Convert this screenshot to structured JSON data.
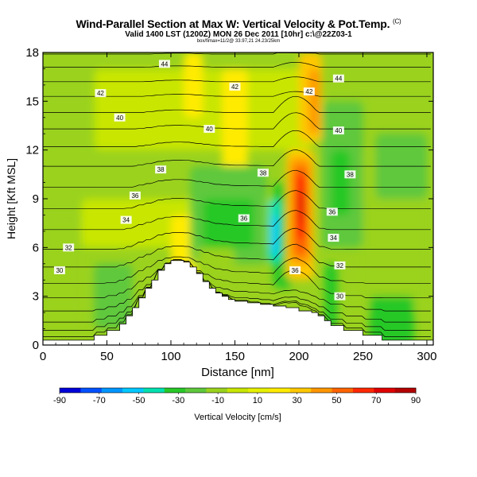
{
  "titles": {
    "main": "Wind-Parallel Section at Max W: Vertical Velocity & Pot.Temp.",
    "main_suffix": "(C)",
    "valid": "Valid 1400 LST (1200Z) MON 26 Dec 2011 [10hr] c:\\@22Z03-1",
    "small": "box/fimax=11/2@ 33.97,21 24.23/25km"
  },
  "chart_data": {
    "type": "heatmap",
    "title": "Wind-Parallel Section at Max W: Vertical Velocity & Pot.Temp.",
    "xlabel": "Distance [nm]",
    "ylabel": "Height [Kft MSL]",
    "xlim": [
      0,
      305
    ],
    "ylim": [
      0,
      18
    ],
    "x_ticks": [
      0,
      50,
      100,
      150,
      200,
      250,
      300
    ],
    "y_ticks": [
      0,
      3,
      6,
      9,
      12,
      15,
      18
    ],
    "colorbar": {
      "label": "Vertical Velocity [cm/s]",
      "tick_labels": [
        "-90",
        "-70",
        "-50",
        "-30",
        "-10",
        "10",
        "30",
        "50",
        "70",
        "90"
      ],
      "colors": [
        "#0000d8",
        "#0050ff",
        "#0096ff",
        "#00c8ff",
        "#00e0b0",
        "#28c828",
        "#5fc83c",
        "#9ad21e",
        "#c8e600",
        "#e6f000",
        "#ffeb00",
        "#ffc800",
        "#ff9600",
        "#ff6400",
        "#ff2800",
        "#e00000",
        "#b40000"
      ]
    },
    "terrain_heights_kft": [
      0.3,
      0.3,
      0.3,
      0.3,
      0.6,
      0.9,
      1.3,
      1.8,
      2.3,
      2.9,
      3.5,
      4.0,
      4.6,
      5.0,
      5.2,
      5.1,
      4.8,
      4.4,
      3.9,
      3.5,
      3.2,
      3.0,
      2.8,
      2.7,
      2.6,
      2.5,
      2.4,
      2.3,
      2.1,
      2.0,
      1.8,
      1.5,
      1.2,
      0.9,
      0.6,
      0.3,
      0.3
    ],
    "terrain_x_nm": [
      0,
      10,
      20,
      30,
      40,
      50,
      60,
      65,
      70,
      75,
      80,
      85,
      90,
      95,
      100,
      110,
      115,
      120,
      125,
      130,
      135,
      140,
      145,
      150,
      160,
      170,
      180,
      190,
      200,
      210,
      215,
      220,
      225,
      235,
      250,
      265,
      305
    ],
    "theta_contour_labels": [
      {
        "text": "30",
        "x": 13,
        "y": 4.6
      },
      {
        "text": "32",
        "x": 20,
        "y": 6.0
      },
      {
        "text": "34",
        "x": 65,
        "y": 7.7
      },
      {
        "text": "36",
        "x": 72,
        "y": 9.2
      },
      {
        "text": "38",
        "x": 92,
        "y": 10.8
      },
      {
        "text": "40",
        "x": 60,
        "y": 14.0
      },
      {
        "text": "42",
        "x": 45,
        "y": 15.5
      },
      {
        "text": "44",
        "x": 95,
        "y": 17.3
      },
      {
        "text": "40",
        "x": 130,
        "y": 13.3
      },
      {
        "text": "42",
        "x": 150,
        "y": 15.9
      },
      {
        "text": "38",
        "x": 172,
        "y": 10.6
      },
      {
        "text": "36",
        "x": 157,
        "y": 7.8
      },
      {
        "text": "36",
        "x": 197,
        "y": 4.6
      },
      {
        "text": "42",
        "x": 208,
        "y": 15.6
      },
      {
        "text": "44",
        "x": 231,
        "y": 16.4
      },
      {
        "text": "40",
        "x": 231,
        "y": 13.2
      },
      {
        "text": "38",
        "x": 240,
        "y": 10.5
      },
      {
        "text": "36",
        "x": 226,
        "y": 8.2
      },
      {
        "text": "34",
        "x": 227,
        "y": 6.6
      },
      {
        "text": "32",
        "x": 232,
        "y": 4.9
      },
      {
        "text": "30",
        "x": 232,
        "y": 3.0
      }
    ],
    "vertical_velocity_features": [
      {
        "name": "main updraft",
        "x_range": [
          190,
          210
        ],
        "height_range": [
          4.5,
          12.5
        ],
        "max_cm_s": 95
      },
      {
        "name": "downdraft",
        "x_range": [
          175,
          187
        ],
        "height_range": [
          4,
          9
        ],
        "min_cm_s": -45
      },
      {
        "name": "upper updraft",
        "x_range": [
          200,
          215
        ],
        "height_range": [
          12,
          18
        ],
        "max_cm_s": 40
      },
      {
        "name": "secondary updraft",
        "x_range": [
          140,
          160
        ],
        "height_range": [
          11,
          17
        ],
        "max_cm_s": 25
      }
    ]
  }
}
